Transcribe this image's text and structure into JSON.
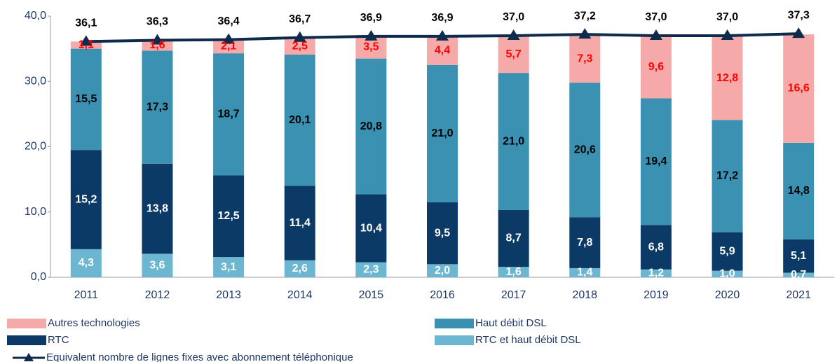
{
  "chart_data": {
    "type": "bar",
    "stacked": true,
    "categories": [
      "2011",
      "2012",
      "2013",
      "2014",
      "2015",
      "2016",
      "2017",
      "2018",
      "2019",
      "2020",
      "2021"
    ],
    "ylim": [
      0,
      40
    ],
    "yticks": [
      {
        "value": 0,
        "label": "0,0"
      },
      {
        "value": 10,
        "label": "10,0"
      },
      {
        "value": 20,
        "label": "20,0"
      },
      {
        "value": 30,
        "label": "30,0"
      },
      {
        "value": 40,
        "label": "40,0"
      }
    ],
    "series": [
      {
        "name": "RTC et haut débit DSL",
        "type": "bar",
        "color": "#6cb6d1",
        "label_color": "#ffffff",
        "values": [
          4.3,
          3.6,
          3.1,
          2.6,
          2.3,
          2.0,
          1.6,
          1.4,
          1.2,
          1.0,
          0.7
        ],
        "value_labels": [
          "4,3",
          "3,6",
          "3,1",
          "2,6",
          "2,3",
          "2,0",
          "1,6",
          "1,4",
          "1,2",
          "1,0",
          "0,7"
        ]
      },
      {
        "name": "RTC",
        "type": "bar",
        "color": "#0c3a66",
        "label_color": "#ffffff",
        "values": [
          15.2,
          13.8,
          12.5,
          11.4,
          10.4,
          9.5,
          8.7,
          7.8,
          6.8,
          5.9,
          5.1
        ],
        "value_labels": [
          "15,2",
          "13,8",
          "12,5",
          "11,4",
          "10,4",
          "9,5",
          "8,7",
          "7,8",
          "6,8",
          "5,9",
          "5,1"
        ]
      },
      {
        "name": "Haut débit DSL",
        "type": "bar",
        "color": "#3a91b1",
        "label_color": "#000000",
        "values": [
          15.5,
          17.3,
          18.7,
          20.1,
          20.8,
          21.0,
          21.0,
          20.6,
          19.4,
          17.2,
          14.8
        ],
        "value_labels": [
          "15,5",
          "17,3",
          "18,7",
          "20,1",
          "20,8",
          "21,0",
          "21,0",
          "20,6",
          "19,4",
          "17,2",
          "14,8"
        ]
      },
      {
        "name": "Autres technologies",
        "type": "bar",
        "color": "#f5aaa9",
        "label_color": "#ff0000",
        "values": [
          1.1,
          1.6,
          2.1,
          2.5,
          3.5,
          4.4,
          5.7,
          7.3,
          9.6,
          12.8,
          16.6
        ],
        "value_labels": [
          "1,1",
          "1,6",
          "2,1",
          "2,5",
          "3,5",
          "4,4",
          "5,7",
          "7,3",
          "9,6",
          "12,8",
          "16,6"
        ]
      },
      {
        "name": "Equivalent nombre de lignes fixes avec abonnement téléphonique",
        "type": "line",
        "color": "#0e2b4c",
        "label_color": "#000000",
        "values": [
          36.1,
          36.3,
          36.4,
          36.7,
          36.9,
          36.9,
          37.0,
          37.2,
          37.0,
          37.0,
          37.3
        ],
        "value_labels": [
          "36,1",
          "36,3",
          "36,4",
          "36,7",
          "36,9",
          "36,9",
          "37,0",
          "37,2",
          "37,0",
          "37,0",
          "37,3"
        ]
      }
    ]
  }
}
